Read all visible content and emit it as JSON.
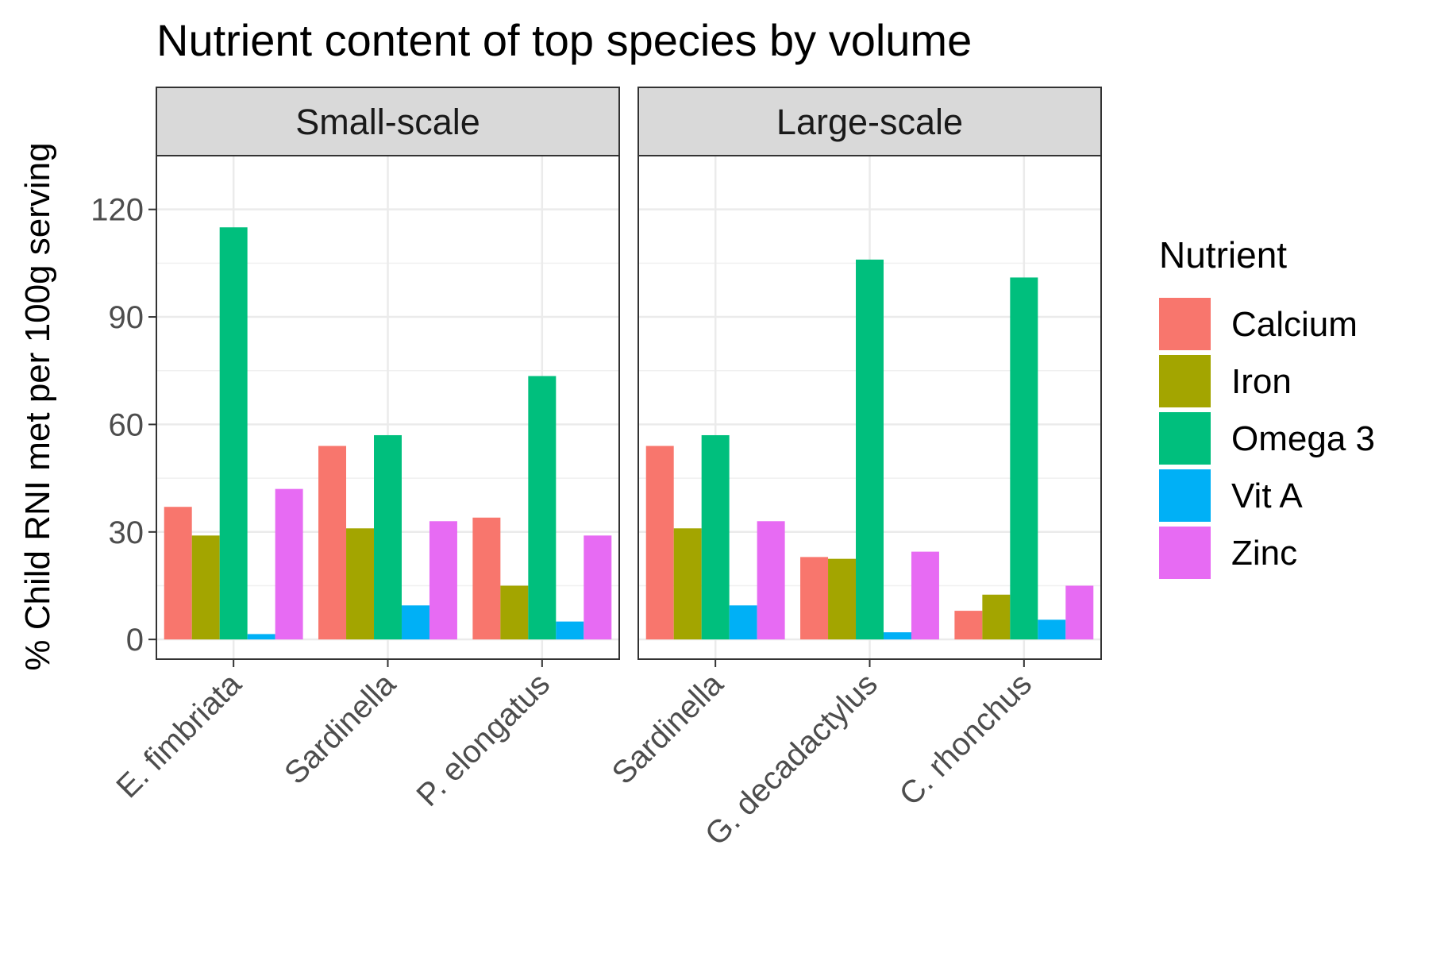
{
  "chart_data": {
    "type": "bar",
    "title": "Nutrient content of top species by volume",
    "ylabel": "% Child RNI met per 100g serving",
    "xlabel": "",
    "ylim": [
      -5.5,
      135
    ],
    "yticks": [
      0,
      30,
      60,
      90,
      120
    ],
    "grid": true,
    "legend": {
      "title": "Nutrient",
      "position": "right",
      "entries": [
        "Calcium",
        "Iron",
        "Omega 3",
        "Vit A",
        "Zinc"
      ]
    },
    "colors": {
      "Calcium": "#F8766D",
      "Iron": "#A3A500",
      "Omega 3": "#00BF7D",
      "Vit A": "#00B0F6",
      "Zinc": "#E76BF3"
    },
    "panels": [
      {
        "label": "Small-scale",
        "categories": [
          "E. fimbriata",
          "Sardinella",
          "P. elongatus"
        ],
        "series": [
          {
            "name": "Calcium",
            "values": [
              37,
              54,
              34
            ]
          },
          {
            "name": "Iron",
            "values": [
              29,
              31,
              15
            ]
          },
          {
            "name": "Omega 3",
            "values": [
              115,
              57,
              73.5
            ]
          },
          {
            "name": "Vit A",
            "values": [
              1.5,
              9.5,
              5
            ]
          },
          {
            "name": "Zinc",
            "values": [
              42,
              33,
              29
            ]
          }
        ]
      },
      {
        "label": "Large-scale",
        "categories": [
          "Sardinella",
          "G. decadactylus",
          "C. rhonchus"
        ],
        "series": [
          {
            "name": "Calcium",
            "values": [
              54,
              23,
              8
            ]
          },
          {
            "name": "Iron",
            "values": [
              31,
              22.5,
              12.5
            ]
          },
          {
            "name": "Omega 3",
            "values": [
              57,
              106,
              101
            ]
          },
          {
            "name": "Vit A",
            "values": [
              9.5,
              2,
              5.5
            ]
          },
          {
            "name": "Zinc",
            "values": [
              33,
              24.5,
              15
            ]
          }
        ]
      }
    ]
  }
}
